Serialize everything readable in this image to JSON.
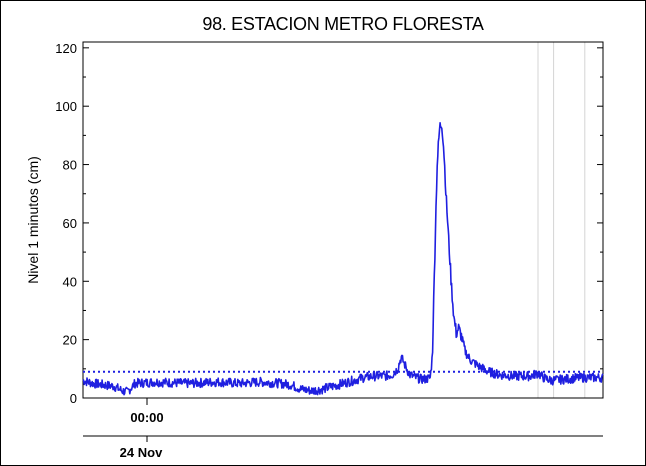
{
  "chart_data": {
    "type": "line",
    "title": "98. ESTACION METRO FLORESTA",
    "xlabel": "",
    "ylabel": "Nivel 1 minutos (cm)",
    "ylim": [
      0,
      122
    ],
    "y_ticks": [
      "0",
      "20",
      "40",
      "60",
      "80",
      "100",
      "120"
    ],
    "y_tick_values": [
      0,
      20,
      40,
      60,
      80,
      100,
      120
    ],
    "time_label": "00:00",
    "date_label": "24 Nov",
    "grid": false,
    "threshold": {
      "value": 9,
      "color": "#1f1fe0",
      "style": "dotted"
    },
    "series": [
      {
        "color": "#1f1fe0",
        "points": [
          [
            0,
            6
          ],
          [
            0.02,
            5
          ],
          [
            0.04,
            4.5
          ],
          [
            0.06,
            4
          ],
          [
            0.075,
            2.5
          ],
          [
            0.085,
            2
          ],
          [
            0.1,
            5
          ],
          [
            0.14,
            5.5
          ],
          [
            0.2,
            5
          ],
          [
            0.26,
            5.5
          ],
          [
            0.3,
            5
          ],
          [
            0.34,
            5.5
          ],
          [
            0.38,
            5
          ],
          [
            0.4,
            4.5
          ],
          [
            0.42,
            3
          ],
          [
            0.44,
            2.5
          ],
          [
            0.46,
            3
          ],
          [
            0.48,
            4
          ],
          [
            0.5,
            5
          ],
          [
            0.52,
            6
          ],
          [
            0.54,
            7
          ],
          [
            0.56,
            7.5
          ],
          [
            0.58,
            7.5
          ],
          [
            0.595,
            8
          ],
          [
            0.605,
            10
          ],
          [
            0.612,
            14
          ],
          [
            0.62,
            11
          ],
          [
            0.628,
            8
          ],
          [
            0.64,
            7
          ],
          [
            0.65,
            6.5
          ],
          [
            0.66,
            6.5
          ],
          [
            0.668,
            7
          ],
          [
            0.672,
            15
          ],
          [
            0.676,
            45
          ],
          [
            0.681,
            80
          ],
          [
            0.686,
            93
          ],
          [
            0.69,
            94
          ],
          [
            0.694,
            85
          ],
          [
            0.698,
            70
          ],
          [
            0.703,
            55
          ],
          [
            0.708,
            40
          ],
          [
            0.713,
            28
          ],
          [
            0.718,
            22
          ],
          [
            0.722,
            24
          ],
          [
            0.728,
            21
          ],
          [
            0.735,
            16
          ],
          [
            0.745,
            13
          ],
          [
            0.76,
            11
          ],
          [
            0.78,
            9
          ],
          [
            0.8,
            8
          ],
          [
            0.83,
            7.5
          ],
          [
            0.86,
            7.5
          ],
          [
            0.875,
            8.5
          ],
          [
            0.885,
            7
          ],
          [
            0.9,
            6
          ],
          [
            0.93,
            6.5
          ],
          [
            0.96,
            7
          ],
          [
            0.98,
            7
          ],
          [
            1.0,
            7
          ]
        ]
      }
    ]
  }
}
